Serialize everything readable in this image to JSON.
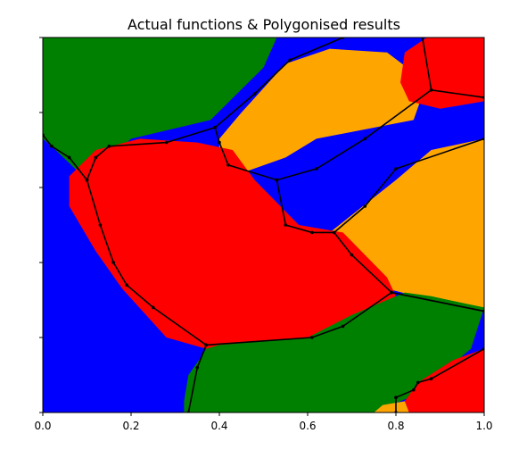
{
  "chart_data": {
    "type": "region-map",
    "title": "Actual functions & Polygonised results",
    "xlim": [
      0,
      1
    ],
    "ylim": [
      0,
      1
    ],
    "x_ticks": [
      0.0,
      0.2,
      0.4,
      0.6,
      0.8,
      1.0
    ],
    "x_tick_labels": [
      "0.0",
      "0.2",
      "0.4",
      "0.6",
      "0.8",
      "1.0"
    ],
    "y_ticks": [
      0.0,
      0.2,
      0.4,
      0.6,
      0.8,
      1.0
    ],
    "y_tick_labels": [],
    "grid": false,
    "background_color": "#0000ff",
    "regions": [
      {
        "color": "#008000",
        "points": [
          [
            0,
            1
          ],
          [
            0.53,
            1
          ],
          [
            0.5,
            0.92
          ],
          [
            0.38,
            0.78
          ],
          [
            0.2,
            0.73
          ],
          [
            0.1,
            0.62
          ],
          [
            0.02,
            0.71
          ],
          [
            0,
            0.73
          ]
        ]
      },
      {
        "color": "#ffa500",
        "points": [
          [
            0.55,
            0.93
          ],
          [
            0.65,
            0.97
          ],
          [
            0.78,
            0.96
          ],
          [
            0.87,
            0.88
          ],
          [
            0.84,
            0.78
          ],
          [
            0.62,
            0.73
          ],
          [
            0.55,
            0.68
          ],
          [
            0.43,
            0.63
          ],
          [
            0.4,
            0.67
          ],
          [
            0.4,
            0.73
          ],
          [
            0.45,
            0.8
          ]
        ]
      },
      {
        "color": "#ff0000",
        "points": [
          [
            0.87,
            1
          ],
          [
            1,
            1
          ],
          [
            1,
            0.83
          ],
          [
            0.9,
            0.81
          ],
          [
            0.83,
            0.83
          ],
          [
            0.81,
            0.88
          ],
          [
            0.82,
            0.96
          ]
        ]
      },
      {
        "color": "#ffa500",
        "points": [
          [
            1,
            0.73
          ],
          [
            0.88,
            0.7
          ],
          [
            0.8,
            0.62
          ],
          [
            0.65,
            0.48
          ],
          [
            0.78,
            0.33
          ],
          [
            0.88,
            0.3
          ],
          [
            1,
            0.27
          ]
        ]
      },
      {
        "color": "#ff0000",
        "points": [
          [
            0.35,
            0.72
          ],
          [
            0.43,
            0.7
          ],
          [
            0.48,
            0.62
          ],
          [
            0.58,
            0.5
          ],
          [
            0.68,
            0.48
          ],
          [
            0.78,
            0.36
          ],
          [
            0.8,
            0.31
          ],
          [
            0.62,
            0.2
          ],
          [
            0.45,
            0.18
          ],
          [
            0.37,
            0.17
          ],
          [
            0.28,
            0.2
          ],
          [
            0.18,
            0.33
          ],
          [
            0.12,
            0.43
          ],
          [
            0.06,
            0.55
          ],
          [
            0.06,
            0.63
          ],
          [
            0.12,
            0.7
          ],
          [
            0.22,
            0.73
          ]
        ]
      },
      {
        "color": "#008000",
        "points": [
          [
            0.32,
            0
          ],
          [
            0.75,
            0
          ],
          [
            0.85,
            0.05
          ],
          [
            0.97,
            0.17
          ],
          [
            1,
            0.28
          ],
          [
            0.96,
            0.29
          ],
          [
            0.88,
            0.31
          ],
          [
            0.82,
            0.32
          ],
          [
            0.7,
            0.26
          ],
          [
            0.6,
            0.2
          ],
          [
            0.4,
            0.18
          ],
          [
            0.37,
            0.17
          ],
          [
            0.36,
            0.15
          ],
          [
            0.33,
            0.1
          ],
          [
            0.32,
            0.03
          ]
        ]
      },
      {
        "color": "#ff0000",
        "points": [
          [
            0.83,
            0
          ],
          [
            1,
            0
          ],
          [
            1,
            0.17
          ],
          [
            0.93,
            0.14
          ],
          [
            0.85,
            0.08
          ],
          [
            0.82,
            0.03
          ]
        ]
      },
      {
        "color": "#ffa500",
        "points": [
          [
            0.75,
            0
          ],
          [
            0.83,
            0
          ],
          [
            0.82,
            0.03
          ],
          [
            0.77,
            0.02
          ]
        ]
      }
    ],
    "polylines": [
      [
        [
          0.12,
          0.68
        ],
        [
          0.15,
          0.71
        ],
        [
          0.28,
          0.72
        ],
        [
          0.39,
          0.76
        ],
        [
          0.48,
          0.85
        ],
        [
          0.56,
          0.94
        ],
        [
          0.68,
          1.0
        ]
      ],
      [
        [
          0.1,
          0.62
        ],
        [
          0.12,
          0.68
        ]
      ],
      [
        [
          0.02,
          0.71
        ],
        [
          0.06,
          0.68
        ],
        [
          0.1,
          0.62
        ]
      ],
      [
        [
          0.0,
          0.74
        ],
        [
          0.02,
          0.71
        ]
      ],
      [
        [
          0.39,
          0.76
        ],
        [
          0.4,
          0.72
        ],
        [
          0.42,
          0.66
        ],
        [
          0.53,
          0.62
        ],
        [
          0.62,
          0.65
        ],
        [
          0.73,
          0.73
        ],
        [
          0.88,
          0.86
        ],
        [
          0.86,
          1.0
        ]
      ],
      [
        [
          0.88,
          0.86
        ],
        [
          1.0,
          0.84
        ]
      ],
      [
        [
          0.53,
          0.62
        ],
        [
          0.55,
          0.5
        ],
        [
          0.61,
          0.48
        ],
        [
          0.66,
          0.48
        ],
        [
          0.73,
          0.55
        ],
        [
          0.8,
          0.65
        ],
        [
          1.0,
          0.73
        ]
      ],
      [
        [
          0.1,
          0.62
        ],
        [
          0.13,
          0.5
        ],
        [
          0.16,
          0.4
        ],
        [
          0.19,
          0.34
        ],
        [
          0.25,
          0.28
        ],
        [
          0.37,
          0.18
        ],
        [
          0.61,
          0.2
        ],
        [
          0.68,
          0.23
        ],
        [
          0.79,
          0.32
        ],
        [
          1.0,
          0.27
        ]
      ],
      [
        [
          0.66,
          0.48
        ],
        [
          0.7,
          0.42
        ],
        [
          0.79,
          0.32
        ]
      ],
      [
        [
          0.37,
          0.18
        ],
        [
          0.35,
          0.12
        ],
        [
          0.33,
          0.0
        ]
      ],
      [
        [
          0.8,
          0.04
        ],
        [
          0.84,
          0.06
        ],
        [
          0.85,
          0.08
        ],
        [
          0.88,
          0.09
        ],
        [
          1.0,
          0.17
        ]
      ],
      [
        [
          0.8,
          0.04
        ],
        [
          0.8,
          0.0
        ]
      ],
      [
        [
          0.79,
          0.32
        ],
        [
          1.0,
          0.27
        ]
      ]
    ]
  }
}
